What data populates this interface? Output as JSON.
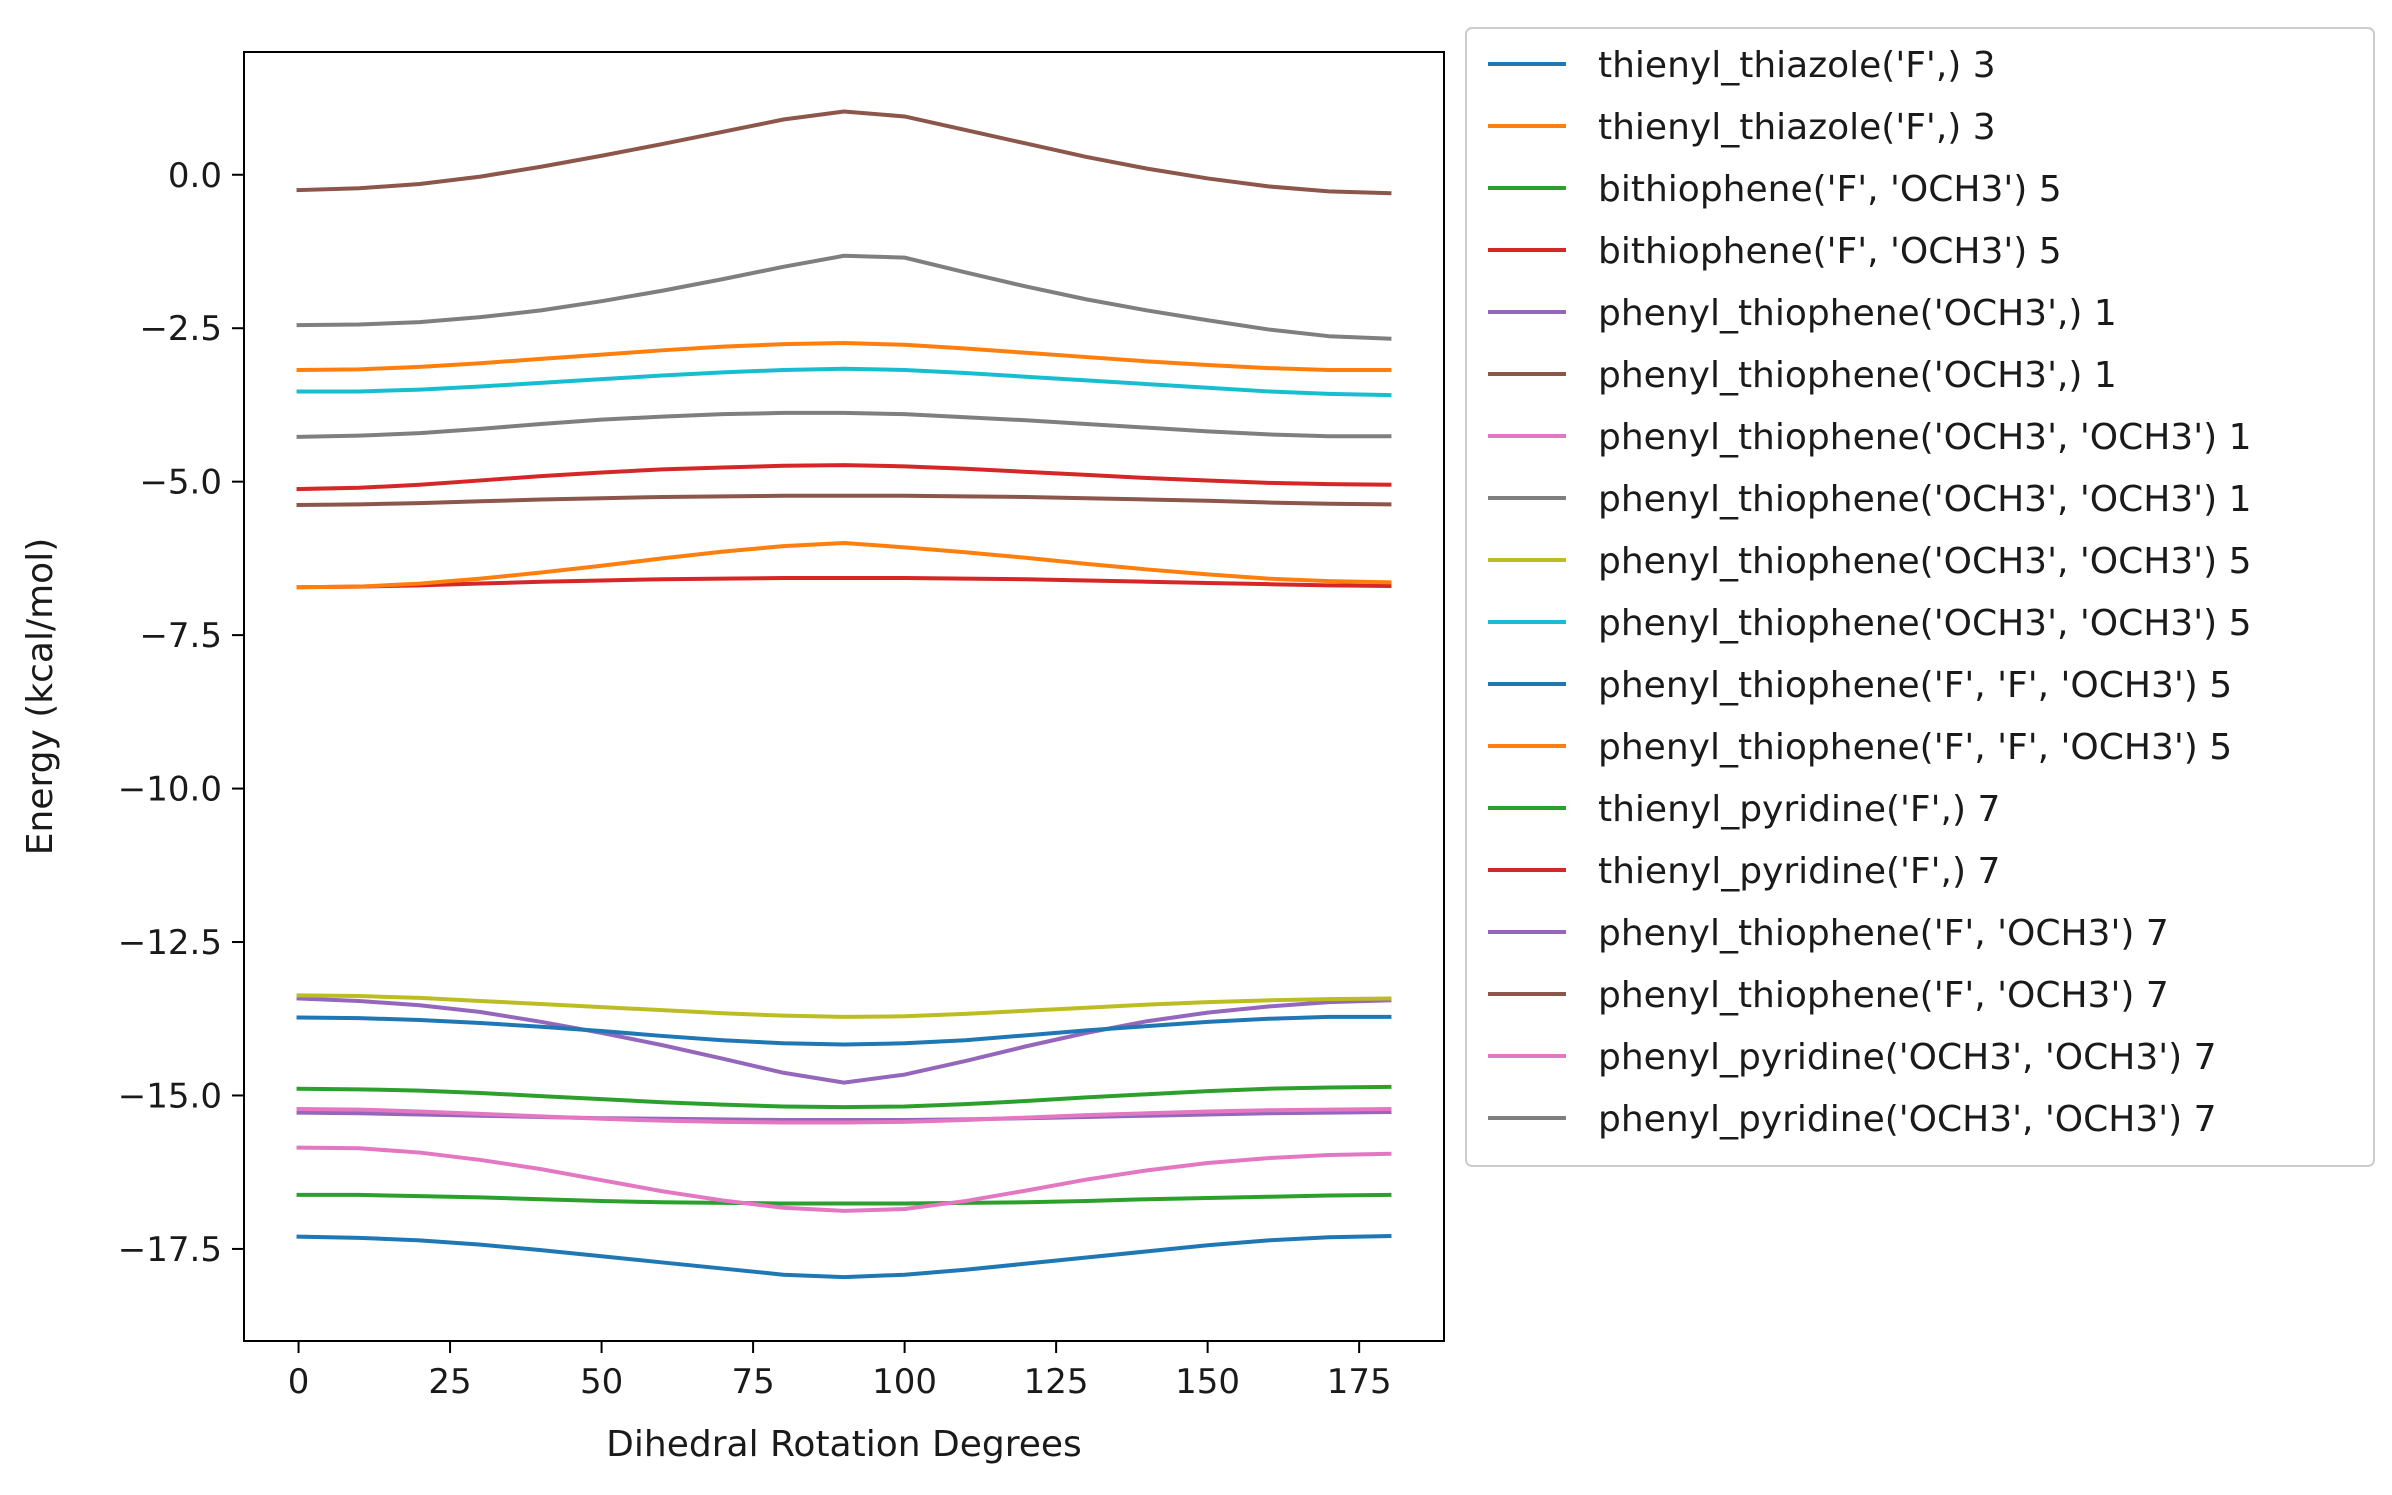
{
  "chart_data": {
    "type": "line",
    "title": "",
    "xlabel": "Dihedral Rotation Degrees",
    "ylabel": "Energy (kcal/mol)",
    "xlim": [
      -9,
      189
    ],
    "ylim": [
      -19.0,
      2.0
    ],
    "xticks": [
      0,
      25,
      50,
      75,
      100,
      125,
      150,
      175
    ],
    "xtick_labels": [
      "0",
      "25",
      "50",
      "75",
      "100",
      "125",
      "150",
      "175"
    ],
    "yticks": [
      0.0,
      -2.5,
      -5.0,
      -7.5,
      -10.0,
      -12.5,
      -15.0,
      -17.5
    ],
    "ytick_labels": [
      "0.0",
      "−2.5",
      "−5.0",
      "−7.5",
      "−10.0",
      "−12.5",
      "−15.0",
      "−17.5"
    ],
    "grid": false,
    "legend_position": "outside-right",
    "x": [
      0,
      10,
      20,
      30,
      40,
      50,
      60,
      70,
      80,
      90,
      100,
      110,
      120,
      130,
      140,
      150,
      160,
      170,
      180
    ],
    "series": [
      {
        "name": "thienyl_thiazole('F',) 3",
        "color": "#1f77b4",
        "values": [
          -17.3,
          -17.32,
          -17.36,
          -17.43,
          -17.52,
          -17.62,
          -17.72,
          -17.82,
          -17.92,
          -17.96,
          -17.92,
          -17.84,
          -17.74,
          -17.64,
          -17.54,
          -17.44,
          -17.36,
          -17.31,
          -17.29
        ]
      },
      {
        "name": "thienyl_thiazole('F',) 3",
        "color": "#ff7f0e",
        "values": [
          -3.18,
          -3.17,
          -3.13,
          -3.07,
          -3.0,
          -2.93,
          -2.86,
          -2.8,
          -2.76,
          -2.74,
          -2.77,
          -2.83,
          -2.9,
          -2.97,
          -3.04,
          -3.1,
          -3.15,
          -3.18,
          -3.18
        ]
      },
      {
        "name": "bithiophene('F', 'OCH3') 5",
        "color": "#2ca02c",
        "values": [
          -16.62,
          -16.62,
          -16.64,
          -16.66,
          -16.69,
          -16.72,
          -16.74,
          -16.75,
          -16.76,
          -16.76,
          -16.76,
          -16.75,
          -16.74,
          -16.72,
          -16.69,
          -16.67,
          -16.65,
          -16.63,
          -16.62
        ]
      },
      {
        "name": "bithiophene('F', 'OCH3') 5",
        "color": "#d62728",
        "values": [
          -6.72,
          -6.71,
          -6.69,
          -6.66,
          -6.63,
          -6.61,
          -6.59,
          -6.58,
          -6.57,
          -6.57,
          -6.57,
          -6.58,
          -6.59,
          -6.61,
          -6.63,
          -6.65,
          -6.67,
          -6.69,
          -6.7
        ]
      },
      {
        "name": "phenyl_thiophene('OCH3',) 1",
        "color": "#9467bd",
        "values": [
          -13.42,
          -13.46,
          -13.53,
          -13.64,
          -13.8,
          -13.98,
          -14.18,
          -14.4,
          -14.63,
          -14.79,
          -14.66,
          -14.44,
          -14.2,
          -13.98,
          -13.79,
          -13.65,
          -13.55,
          -13.48,
          -13.45
        ]
      },
      {
        "name": "phenyl_thiophene('OCH3',) 1",
        "color": "#8c564b",
        "values": [
          -0.25,
          -0.22,
          -0.15,
          -0.03,
          0.13,
          0.31,
          0.5,
          0.7,
          0.9,
          1.03,
          0.95,
          0.73,
          0.51,
          0.29,
          0.1,
          -0.06,
          -0.19,
          -0.27,
          -0.3
        ]
      },
      {
        "name": "phenyl_thiophene('OCH3', 'OCH3') 1",
        "color": "#e377c2",
        "values": [
          -15.85,
          -15.86,
          -15.93,
          -16.05,
          -16.2,
          -16.38,
          -16.56,
          -16.71,
          -16.83,
          -16.88,
          -16.85,
          -16.72,
          -16.55,
          -16.37,
          -16.22,
          -16.1,
          -16.02,
          -15.97,
          -15.95
        ]
      },
      {
        "name": "phenyl_thiophene('OCH3', 'OCH3') 1",
        "color": "#7f7f7f",
        "values": [
          -2.45,
          -2.44,
          -2.4,
          -2.32,
          -2.21,
          -2.06,
          -1.89,
          -1.7,
          -1.5,
          -1.32,
          -1.35,
          -1.59,
          -1.82,
          -2.03,
          -2.21,
          -2.37,
          -2.52,
          -2.63,
          -2.67
        ]
      },
      {
        "name": "phenyl_thiophene('OCH3', 'OCH3') 5",
        "color": "#bcbd22",
        "values": [
          -13.37,
          -13.38,
          -13.41,
          -13.46,
          -13.51,
          -13.56,
          -13.61,
          -13.66,
          -13.7,
          -13.72,
          -13.71,
          -13.67,
          -13.62,
          -13.57,
          -13.52,
          -13.48,
          -13.45,
          -13.43,
          -13.42
        ]
      },
      {
        "name": "phenyl_thiophene('OCH3', 'OCH3') 5",
        "color": "#17becf",
        "values": [
          -3.53,
          -3.53,
          -3.5,
          -3.45,
          -3.39,
          -3.33,
          -3.27,
          -3.22,
          -3.18,
          -3.16,
          -3.18,
          -3.23,
          -3.29,
          -3.35,
          -3.41,
          -3.47,
          -3.53,
          -3.57,
          -3.59
        ]
      },
      {
        "name": "phenyl_thiophene('F', 'F', 'OCH3') 5",
        "color": "#1f77b4",
        "values": [
          -13.73,
          -13.74,
          -13.77,
          -13.82,
          -13.88,
          -13.95,
          -14.03,
          -14.1,
          -14.15,
          -14.17,
          -14.15,
          -14.1,
          -14.02,
          -13.94,
          -13.87,
          -13.8,
          -13.75,
          -13.72,
          -13.72
        ]
      },
      {
        "name": "phenyl_thiophene('F', 'F', 'OCH3') 5",
        "color": "#ff7f0e",
        "values": [
          -6.72,
          -6.71,
          -6.66,
          -6.58,
          -6.48,
          -6.37,
          -6.25,
          -6.14,
          -6.05,
          -6.0,
          -6.07,
          -6.15,
          -6.24,
          -6.34,
          -6.43,
          -6.51,
          -6.58,
          -6.62,
          -6.64
        ]
      },
      {
        "name": "thienyl_pyridine('F',) 7",
        "color": "#2ca02c",
        "values": [
          -14.89,
          -14.9,
          -14.92,
          -14.96,
          -15.01,
          -15.06,
          -15.11,
          -15.15,
          -15.18,
          -15.19,
          -15.18,
          -15.14,
          -15.09,
          -15.03,
          -14.98,
          -14.93,
          -14.89,
          -14.87,
          -14.86
        ]
      },
      {
        "name": "thienyl_pyridine('F',) 7",
        "color": "#d62728",
        "values": [
          -5.12,
          -5.1,
          -5.05,
          -4.98,
          -4.91,
          -4.85,
          -4.8,
          -4.77,
          -4.74,
          -4.73,
          -4.75,
          -4.79,
          -4.84,
          -4.89,
          -4.94,
          -4.98,
          -5.02,
          -5.04,
          -5.05
        ]
      },
      {
        "name": "phenyl_thiophene('F', 'OCH3') 7",
        "color": "#9467bd",
        "values": [
          -15.28,
          -15.29,
          -15.31,
          -15.33,
          -15.35,
          -15.37,
          -15.38,
          -15.39,
          -15.4,
          -15.4,
          -15.4,
          -15.39,
          -15.37,
          -15.35,
          -15.33,
          -15.31,
          -15.29,
          -15.28,
          -15.27
        ]
      },
      {
        "name": "phenyl_thiophene('F', 'OCH3') 7",
        "color": "#8c564b",
        "values": [
          -5.38,
          -5.37,
          -5.35,
          -5.32,
          -5.29,
          -5.27,
          -5.25,
          -5.24,
          -5.23,
          -5.23,
          -5.23,
          -5.24,
          -5.25,
          -5.27,
          -5.29,
          -5.31,
          -5.34,
          -5.36,
          -5.37
        ]
      },
      {
        "name": "phenyl_pyridine('OCH3', 'OCH3') 7",
        "color": "#e377c2",
        "values": [
          -15.22,
          -15.23,
          -15.26,
          -15.3,
          -15.34,
          -15.38,
          -15.41,
          -15.43,
          -15.44,
          -15.44,
          -15.43,
          -15.4,
          -15.36,
          -15.32,
          -15.29,
          -15.26,
          -15.24,
          -15.23,
          -15.22
        ]
      },
      {
        "name": "phenyl_pyridine('OCH3', 'OCH3') 7",
        "color": "#7f7f7f",
        "values": [
          -4.27,
          -4.25,
          -4.21,
          -4.14,
          -4.06,
          -3.99,
          -3.94,
          -3.9,
          -3.88,
          -3.88,
          -3.9,
          -3.95,
          -4.0,
          -4.06,
          -4.12,
          -4.18,
          -4.23,
          -4.26,
          -4.26
        ]
      }
    ]
  }
}
